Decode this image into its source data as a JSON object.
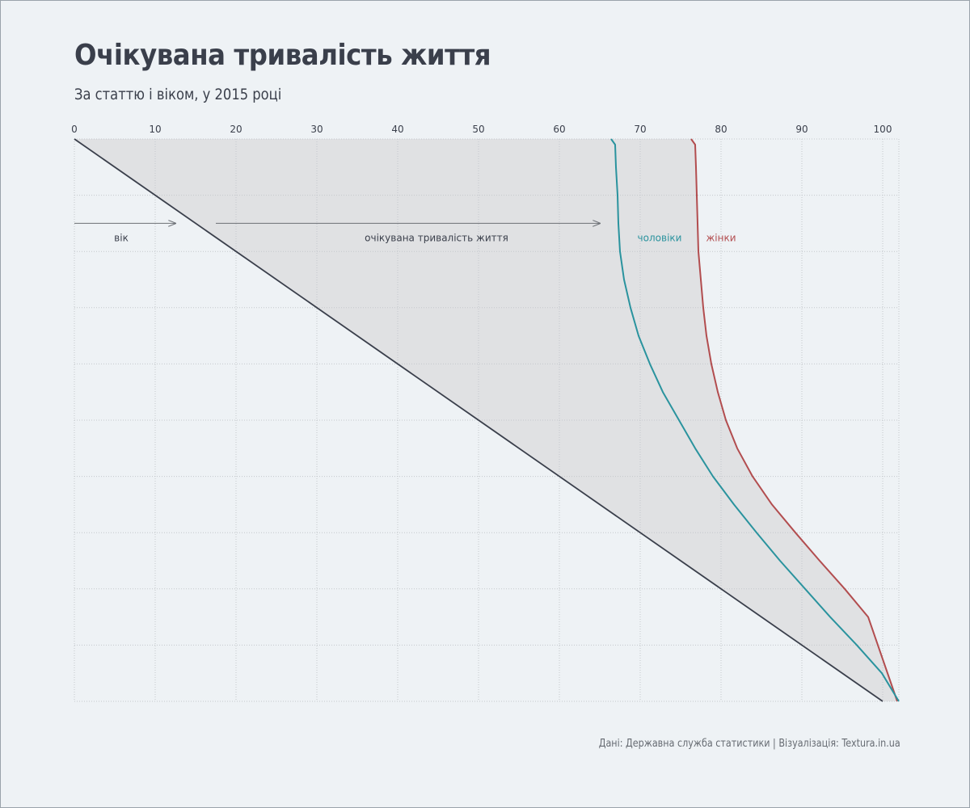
{
  "title": "Очікувана тривалість життя",
  "subtitle": "За статтю і віком, у 2015 році",
  "source": "Дані: Державна служба статистики | Візуалізація: Textura.in.ua",
  "colors": {
    "background": "#eef2f5",
    "men": "#2a939e",
    "women": "#b24d4f",
    "age_line": "#3a3f4b",
    "band": "#e0e1e3",
    "grid": "#c4c8cc",
    "arrow": "#6b6f75"
  },
  "chart_data": {
    "type": "line",
    "title": "Очікувана тривалість життя",
    "subtitle": "За статтю і віком, у 2015 році",
    "x_axis_position": "top",
    "xlim": [
      0,
      102
    ],
    "x_ticks": [
      "0",
      "10",
      "20",
      "30",
      "40",
      "50",
      "60",
      "70",
      "80",
      "90",
      "100"
    ],
    "ylim": [
      0,
      100
    ],
    "y_axis_direction": "down",
    "y_tick_labels_visible": false,
    "grid": true,
    "description_labels": {
      "age": "вік",
      "life_expectancy": "очікувана тривалість життя"
    },
    "series": [
      {
        "name": "чоловіки",
        "color": "#2a939e",
        "points": [
          [
            66.4,
            0
          ],
          [
            66.9,
            1
          ],
          [
            67.0,
            5
          ],
          [
            67.2,
            10
          ],
          [
            67.3,
            15
          ],
          [
            67.5,
            20
          ],
          [
            68.0,
            25
          ],
          [
            68.8,
            30
          ],
          [
            69.8,
            35
          ],
          [
            71.2,
            40
          ],
          [
            72.8,
            45
          ],
          [
            74.8,
            50
          ],
          [
            76.8,
            55
          ],
          [
            79.0,
            60
          ],
          [
            81.6,
            65
          ],
          [
            84.4,
            70
          ],
          [
            87.3,
            75
          ],
          [
            90.4,
            80
          ],
          [
            93.5,
            85
          ],
          [
            96.8,
            90
          ],
          [
            99.9,
            95
          ],
          [
            102.0,
            100
          ]
        ]
      },
      {
        "name": "жінки",
        "color": "#b24d4f",
        "points": [
          [
            76.3,
            0
          ],
          [
            76.8,
            1
          ],
          [
            76.9,
            5
          ],
          [
            77.0,
            10
          ],
          [
            77.1,
            15
          ],
          [
            77.2,
            20
          ],
          [
            77.5,
            25
          ],
          [
            77.8,
            30
          ],
          [
            78.2,
            35
          ],
          [
            78.8,
            40
          ],
          [
            79.6,
            45
          ],
          [
            80.6,
            50
          ],
          [
            82.0,
            55
          ],
          [
            83.9,
            60
          ],
          [
            86.3,
            65
          ],
          [
            89.2,
            70
          ],
          [
            92.2,
            75
          ],
          [
            95.3,
            80
          ],
          [
            98.2,
            85
          ],
          [
            101.8,
            100
          ]
        ]
      },
      {
        "name": "вік",
        "color": "#3a3f4b",
        "points": [
          [
            0,
            0
          ],
          [
            100,
            100
          ]
        ]
      }
    ]
  }
}
